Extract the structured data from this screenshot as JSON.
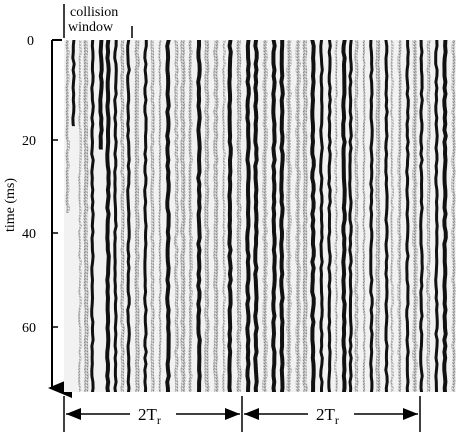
{
  "figure": {
    "inset_label_line1": "collision",
    "inset_label_line2": "window",
    "y_axis_label": "time (ms)",
    "y_ticks": [
      "0",
      "20",
      "40",
      "60"
    ],
    "y_range_ms": [
      0,
      72
    ],
    "span_label": "2T",
    "span_subscript": "r",
    "spans": [
      "left",
      "right"
    ]
  },
  "streaks": {
    "description_free_count": 53,
    "dark_fraction_estimate": 0.45
  }
}
